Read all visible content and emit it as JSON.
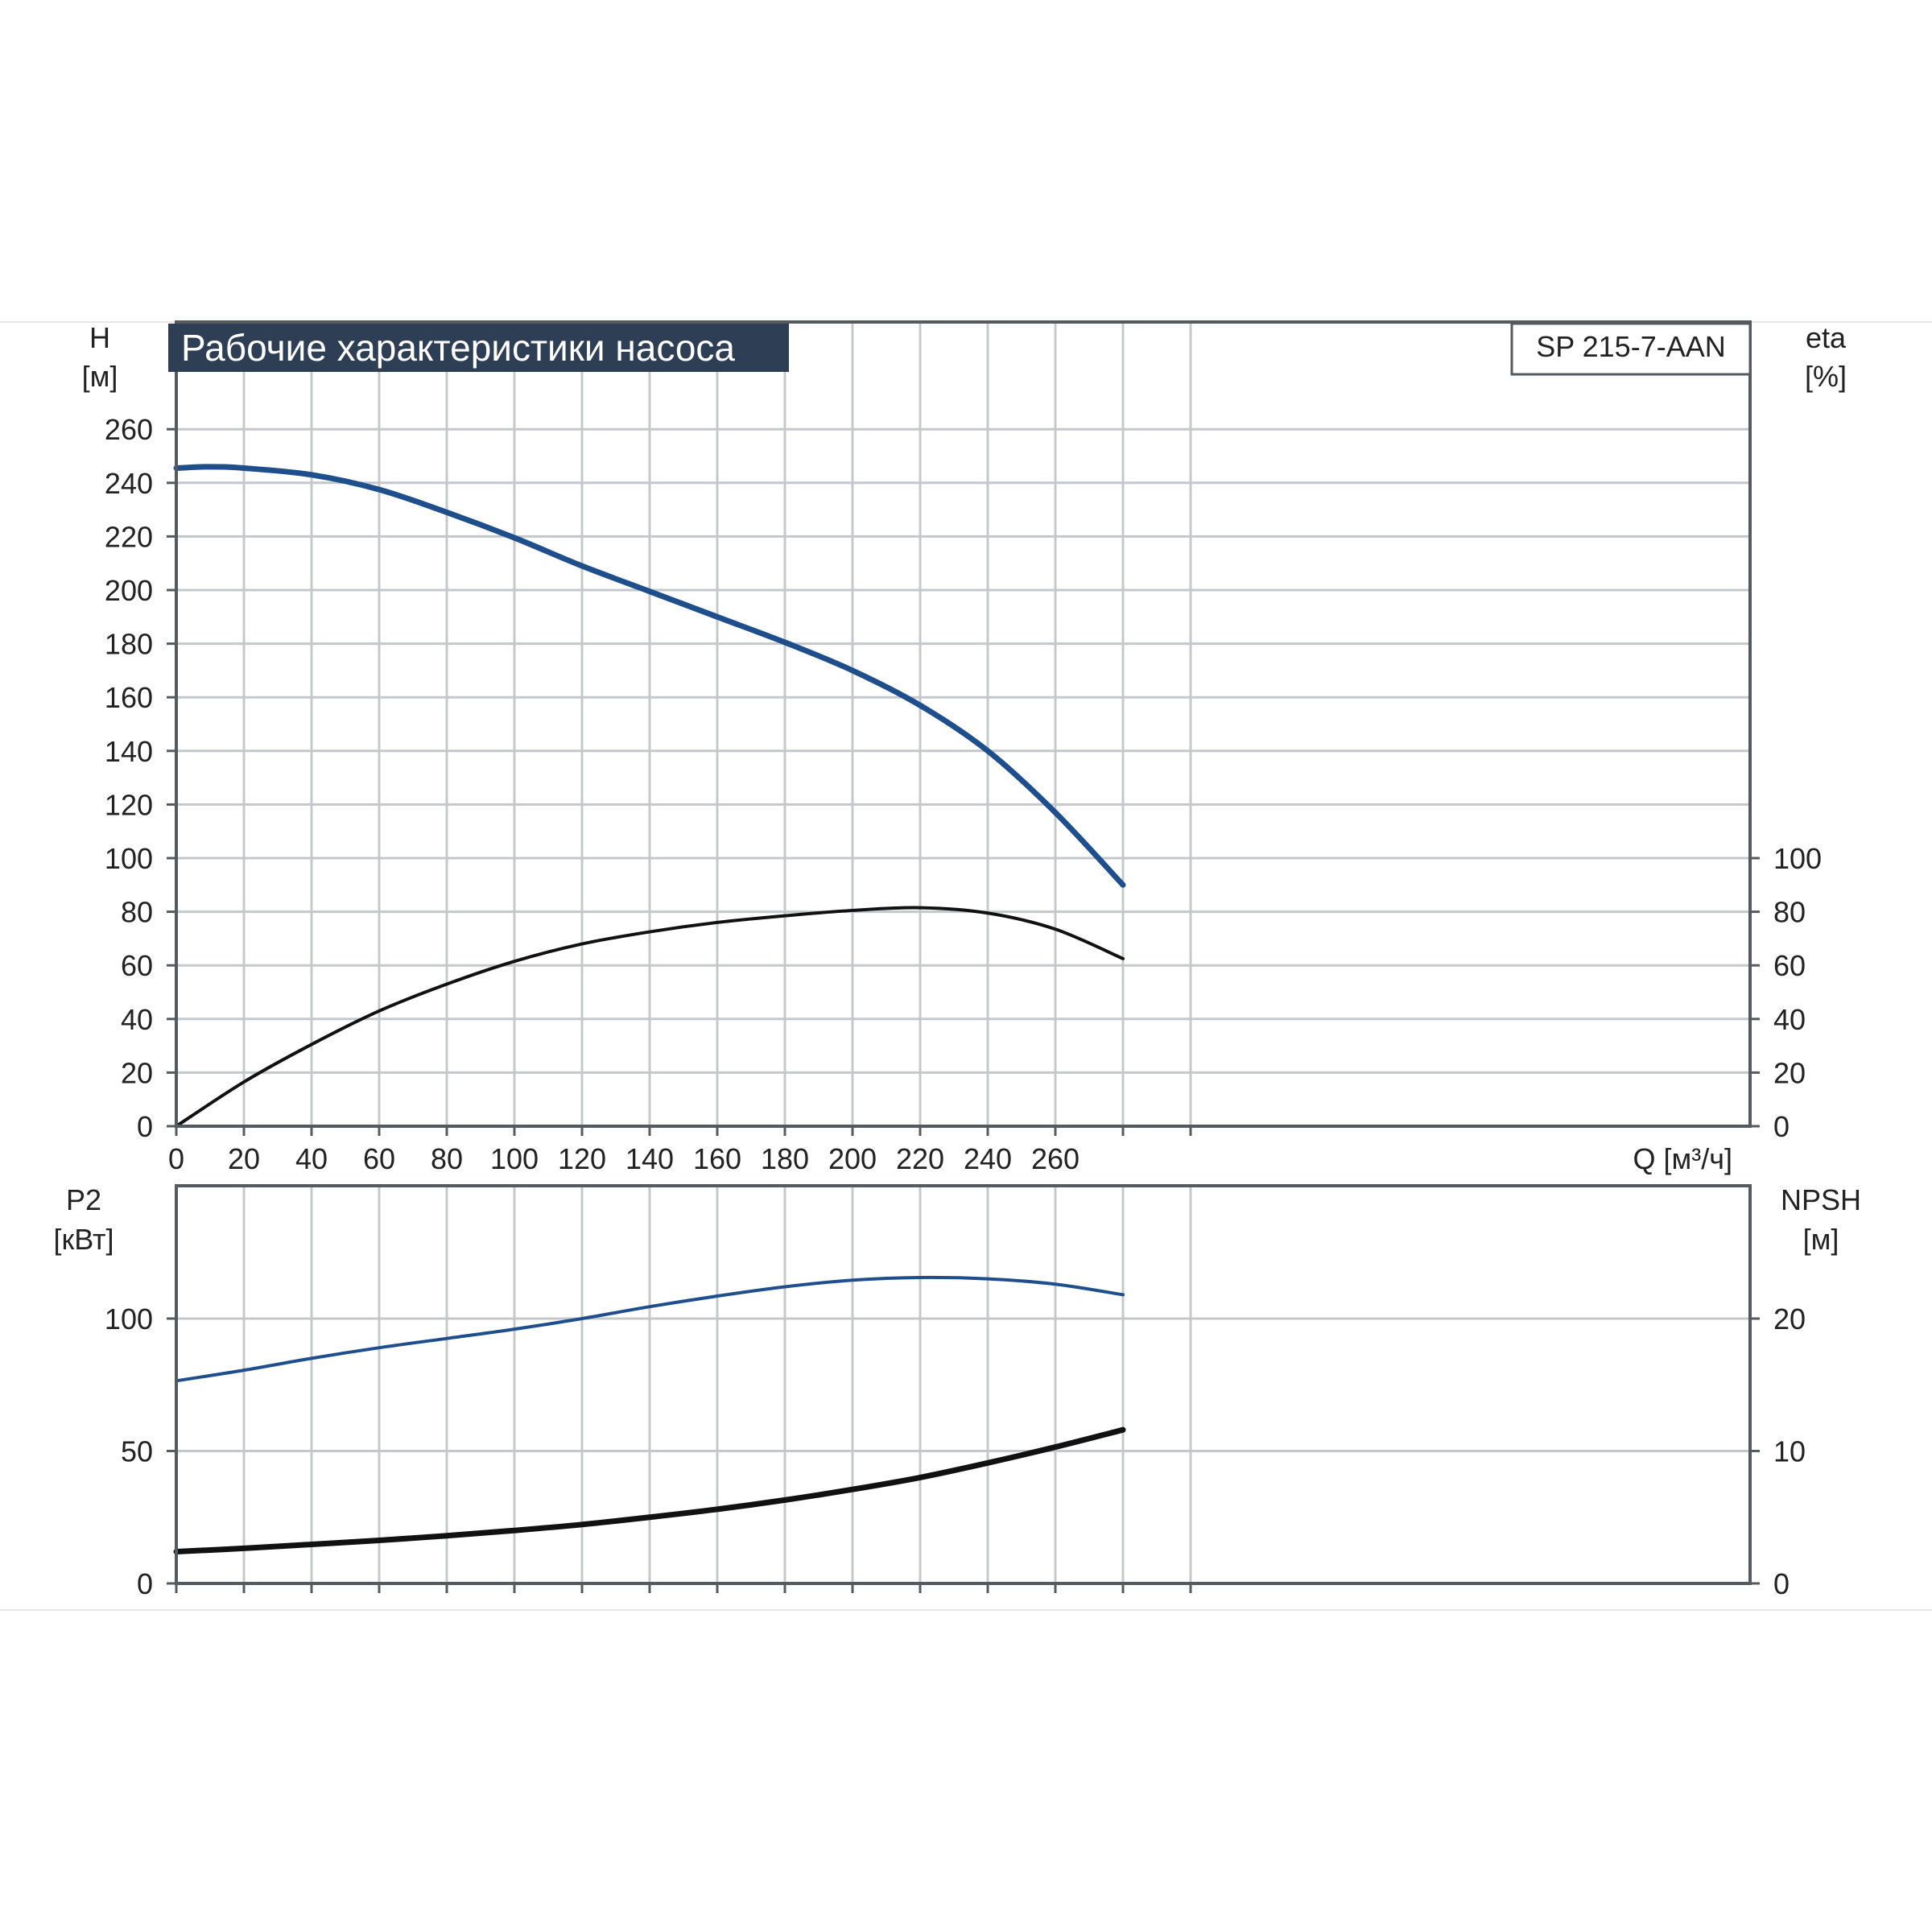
{
  "title": "Рабочие характеристики насоса",
  "model": "SP 215-7-AAN",
  "colors": {
    "title_bg": "#2e3f55",
    "title_text": "#ffffff",
    "curve_blue": "#1f4e8c",
    "curve_black": "#111111"
  },
  "top_chart": {
    "left_axis": {
      "name": "H",
      "unit": "[м]"
    },
    "right_axis": {
      "name": "eta",
      "unit": "[%]"
    },
    "x_axis": {
      "label": "Q [м³/ч]"
    }
  },
  "bottom_chart": {
    "left_axis": {
      "name": "P2",
      "unit": "[кВт]"
    },
    "right_axis": {
      "name": "NPSH",
      "unit": "[м]"
    }
  },
  "chart_data": [
    {
      "type": "line",
      "title": "Рабочие характеристики насоса",
      "xlabel": "Q [м³/ч]",
      "ylabel": "H [м]",
      "ylabel_right": "eta [%]",
      "xlim": [
        0,
        310
      ],
      "ylim": [
        0,
        275
      ],
      "ylim_right": [
        0,
        275
      ],
      "x_ticks": [
        0,
        20,
        40,
        60,
        80,
        100,
        120,
        140,
        160,
        180,
        200,
        220,
        240,
        260
      ],
      "y_ticks": [
        0,
        20,
        40,
        60,
        80,
        100,
        120,
        140,
        160,
        180,
        200,
        220,
        240,
        260
      ],
      "y_ticks_right": [
        0,
        20,
        40,
        60,
        80,
        100
      ],
      "grid": true,
      "series": [
        {
          "name": "H",
          "axis": "left",
          "color": "#1f4e8c",
          "x": [
            0,
            10,
            20,
            40,
            60,
            80,
            100,
            120,
            140,
            160,
            180,
            200,
            220,
            240,
            260,
            280
          ],
          "y": [
            245.5,
            246,
            245.5,
            243,
            237.5,
            229,
            219.5,
            209,
            199.5,
            190,
            180.5,
            170,
            157,
            140,
            117,
            90
          ]
        },
        {
          "name": "eta",
          "axis": "right",
          "color": "#111111",
          "x": [
            0,
            20,
            40,
            60,
            80,
            100,
            120,
            140,
            160,
            180,
            200,
            220,
            240,
            260,
            280
          ],
          "y": [
            0,
            16.5,
            30.5,
            43,
            53,
            61.5,
            68,
            72.5,
            76,
            78.5,
            80.5,
            81.5,
            79.5,
            73.5,
            62.5
          ]
        }
      ]
    },
    {
      "type": "line",
      "xlabel": "",
      "ylabel": "P2 [кВт]",
      "ylabel_right": "NPSH [м]",
      "xlim": [
        0,
        310
      ],
      "ylim": [
        0,
        150
      ],
      "ylim_right": [
        0,
        30
      ],
      "x_ticks": [
        0,
        20,
        40,
        60,
        80,
        100,
        120,
        140,
        160,
        180,
        200,
        220,
        240,
        260
      ],
      "y_ticks": [
        0,
        50,
        100
      ],
      "y_ticks_right": [
        0,
        10,
        20
      ],
      "grid": true,
      "series": [
        {
          "name": "P2",
          "axis": "left",
          "color": "#1f4e8c",
          "x": [
            0,
            20,
            40,
            60,
            80,
            100,
            120,
            140,
            160,
            180,
            200,
            220,
            240,
            260,
            280
          ],
          "y": [
            76.5,
            80.5,
            85,
            89,
            92.5,
            96,
            100,
            104.5,
            108.5,
            112,
            114.5,
            115.5,
            115,
            113,
            109
          ]
        },
        {
          "name": "NPSH",
          "axis": "right",
          "color": "#111111",
          "x": [
            0,
            20,
            40,
            60,
            80,
            100,
            120,
            140,
            160,
            180,
            200,
            220,
            240,
            260,
            280
          ],
          "y": [
            2.4,
            2.65,
            2.95,
            3.25,
            3.6,
            4.0,
            4.45,
            5.0,
            5.6,
            6.3,
            7.1,
            8.0,
            9.1,
            10.3,
            11.6
          ]
        }
      ]
    }
  ]
}
